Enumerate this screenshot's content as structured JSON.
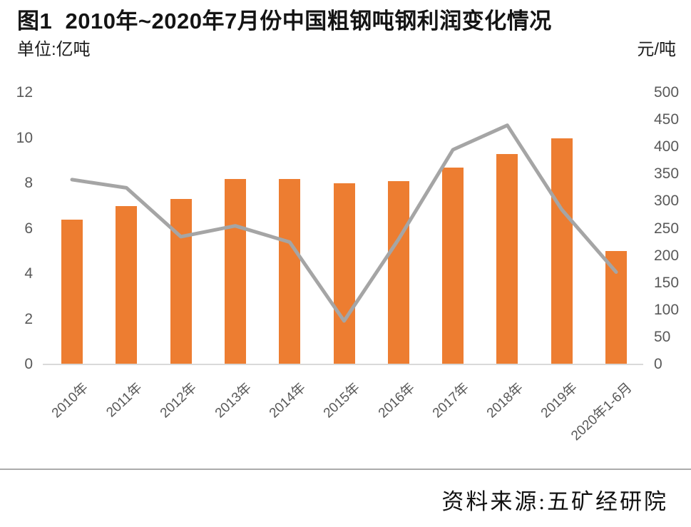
{
  "header": {
    "title": "图1  2010年~2020年7月份中国粗钢吨钢利润变化情况",
    "left_unit": "单位:亿吨",
    "right_unit": "元/吨"
  },
  "footer": {
    "source": "资料来源:五矿经研院"
  },
  "chart_data": {
    "type": "bar",
    "title": "图1 2010年~2020年7月份中国粗钢吨钢利润变化情况",
    "categories": [
      "2010年",
      "2011年",
      "2012年",
      "2013年",
      "2014年",
      "2015年",
      "2016年",
      "2017年",
      "2018年",
      "2019年",
      "2020年1-6月"
    ],
    "series": [
      {
        "name": "bar-series-left-axis",
        "type": "bar",
        "axis": "left",
        "unit": "亿吨",
        "color": "#ED7D31",
        "values": [
          6.4,
          7.0,
          7.3,
          8.2,
          8.2,
          8.0,
          8.1,
          8.7,
          9.3,
          10.0,
          5.0
        ]
      },
      {
        "name": "line-series-right-axis",
        "type": "line",
        "axis": "right",
        "unit": "元/吨",
        "color": "#A5A5A5",
        "values": [
          340,
          325,
          235,
          255,
          225,
          80,
          230,
          395,
          440,
          285,
          170
        ]
      }
    ],
    "left_axis": {
      "label": "单位:亿吨",
      "ticks": [
        0,
        2,
        4,
        6,
        8,
        10,
        12
      ],
      "range": [
        0,
        12
      ]
    },
    "right_axis": {
      "label": "元/吨",
      "ticks": [
        0,
        50,
        100,
        150,
        200,
        250,
        300,
        350,
        400,
        450,
        500
      ],
      "range": [
        0,
        500
      ]
    },
    "grid": false,
    "legend": "none",
    "colors": {
      "bar": "#ED7D31",
      "line": "#A5A5A5",
      "axis_line": "#D9D9D9",
      "tick_text": "#595959"
    }
  }
}
